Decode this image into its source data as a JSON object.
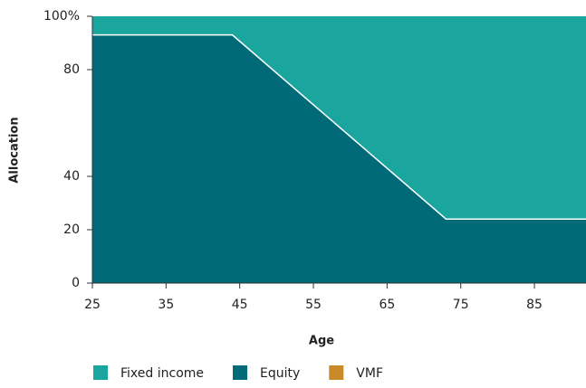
{
  "chart_data": {
    "type": "area",
    "stacked": true,
    "x_label": "Age",
    "y_label": "Allocation",
    "x": [
      25,
      44,
      73,
      92
    ],
    "series": [
      {
        "name": "Fixed income",
        "color": "#1ba59f",
        "values": [
          7,
          7,
          76,
          76
        ]
      },
      {
        "name": "Equity",
        "color": "#006a78",
        "values": [
          93,
          93,
          24,
          24
        ]
      },
      {
        "name": "VMF",
        "color": "#c98b2a",
        "values": [
          0,
          0,
          0,
          0
        ]
      }
    ],
    "stack_order": [
      1,
      0,
      2
    ],
    "xlim": [
      25,
      92
    ],
    "xticks": [
      25,
      35,
      45,
      55,
      65,
      75,
      85
    ],
    "ylim": [
      0,
      100
    ],
    "yticks": [
      0,
      20,
      40,
      80,
      {
        "value": 100,
        "label": "100%"
      }
    ],
    "legend": "bottom"
  }
}
